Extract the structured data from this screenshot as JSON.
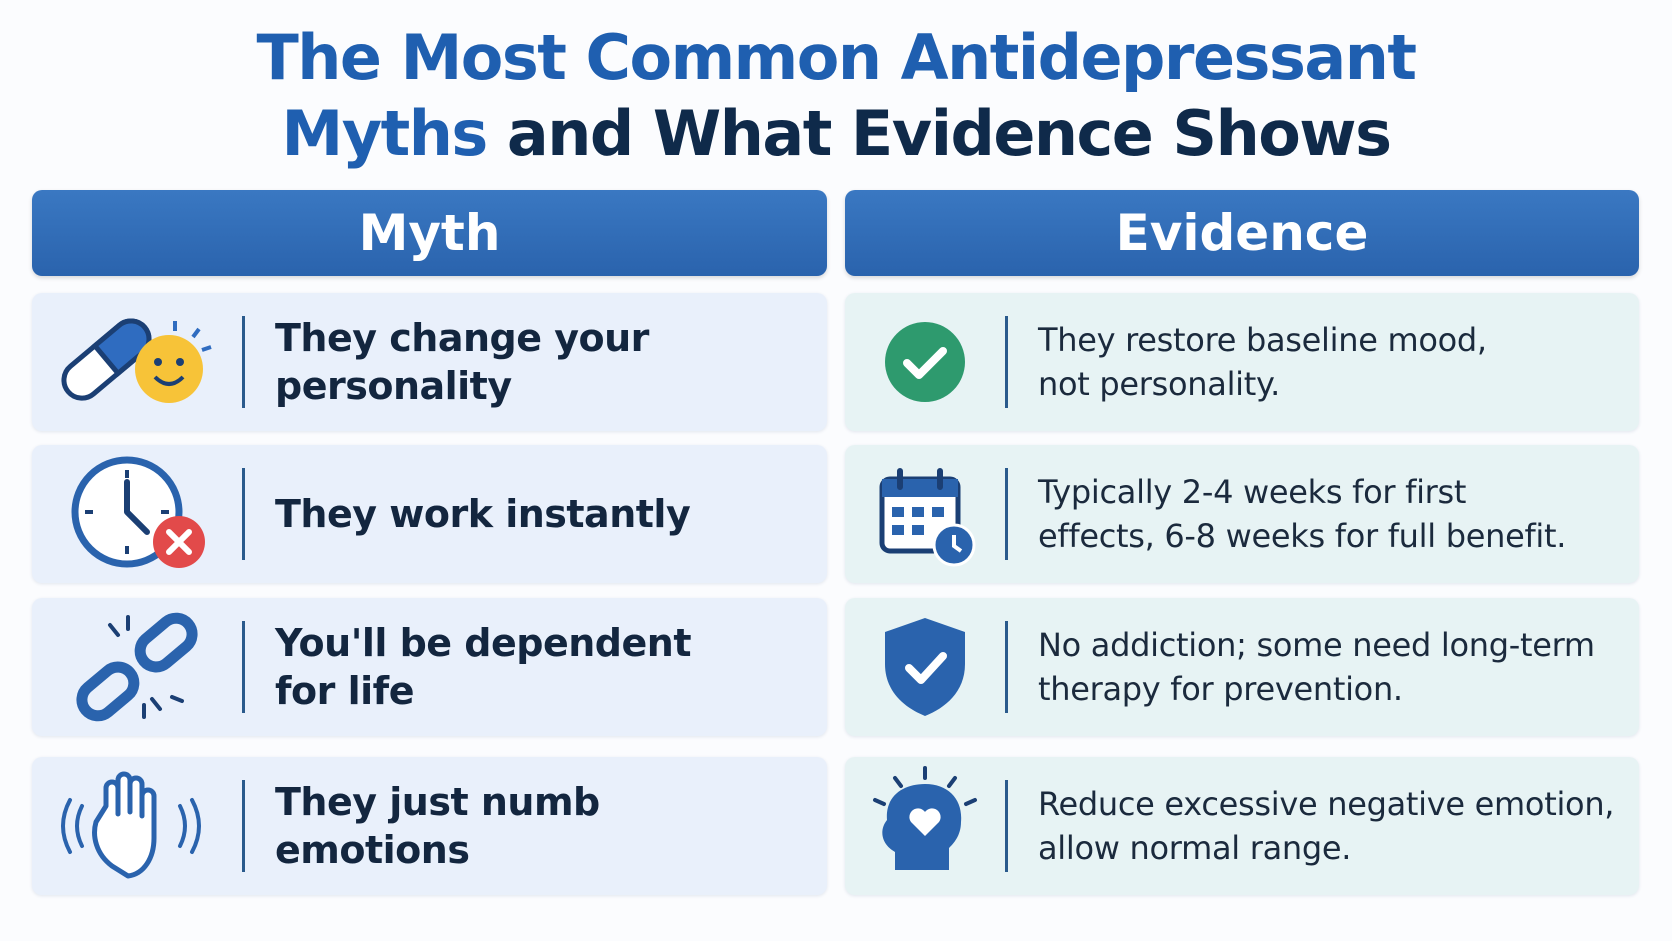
{
  "header": {
    "title_line1": "The Most Common Antidepressant",
    "title_line2_highlight": "Myths",
    "title_line2_rest": "and What Evidence Shows"
  },
  "columns": {
    "myth": "Myth",
    "evidence": "Evidence"
  },
  "rows": [
    {
      "myth": [
        "They change your",
        "personality"
      ],
      "evidence": [
        "They restore baseline mood,",
        "not personality."
      ]
    },
    {
      "myth": [
        "They work instantly"
      ],
      "evidence": [
        "Typically 2-4 weeks for first",
        "effects, 6-8 weeks for full benefit."
      ]
    },
    {
      "myth": [
        "You'll be dependent",
        "for life"
      ],
      "evidence": [
        "No addiction; some need long-term",
        "therapy for prevention."
      ]
    },
    {
      "myth": [
        "They just numb",
        "emotions"
      ],
      "evidence": [
        "Reduce excessive negative emotion,",
        "allow normal range."
      ]
    }
  ]
}
